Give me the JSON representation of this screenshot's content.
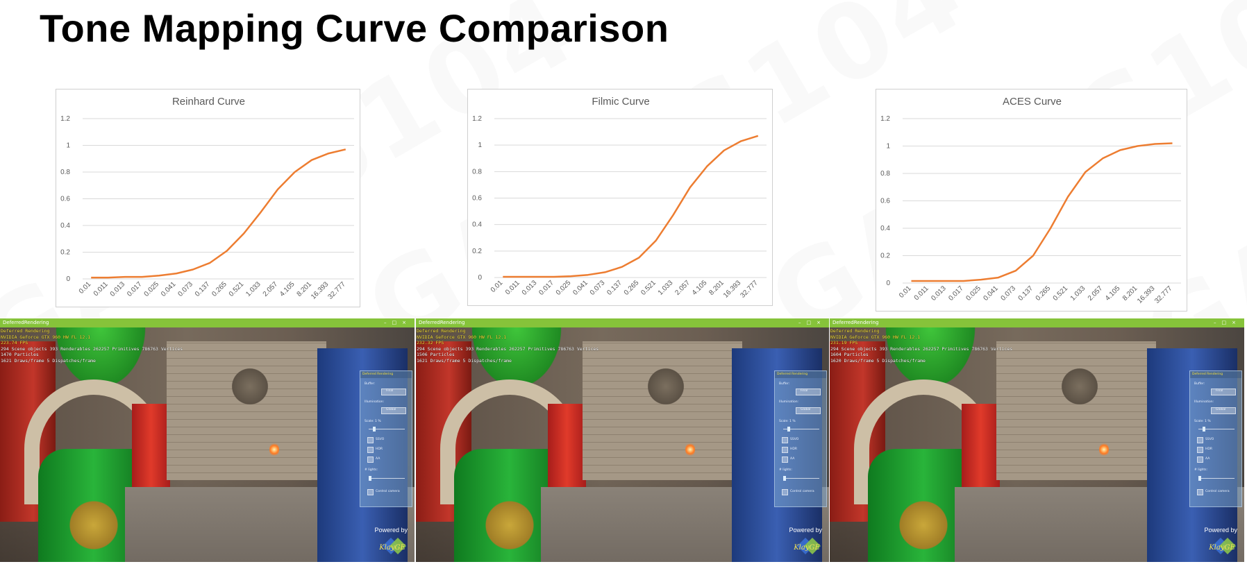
{
  "title": "Tone Mapping Curve Comparison",
  "chart_data": [
    {
      "type": "line",
      "title": "Reinhard Curve",
      "categories": [
        "0.01",
        "0.011",
        "0.013",
        "0.017",
        "0.025",
        "0.041",
        "0.073",
        "0.137",
        "0.265",
        "0.521",
        "1.033",
        "2.057",
        "4.105",
        "8.201",
        "16.393",
        "32.777"
      ],
      "series": [
        {
          "values": [
            0.01,
            0.01,
            0.015,
            0.015,
            0.025,
            0.04,
            0.07,
            0.12,
            0.21,
            0.34,
            0.5,
            0.67,
            0.8,
            0.89,
            0.94,
            0.97
          ],
          "color": "#ed7d31"
        }
      ],
      "ylim": [
        0,
        1.2
      ],
      "yticks": [
        "0",
        "0.2",
        "0.4",
        "0.6",
        "0.8",
        "1",
        "1.2"
      ],
      "grid": true
    },
    {
      "type": "line",
      "title": "Filmic Curve",
      "categories": [
        "0.01",
        "0.011",
        "0.013",
        "0.017",
        "0.025",
        "0.041",
        "0.073",
        "0.137",
        "0.265",
        "0.521",
        "1.033",
        "2.057",
        "4.105",
        "8.201",
        "16.393",
        "32.777"
      ],
      "series": [
        {
          "values": [
            0.005,
            0.005,
            0.005,
            0.005,
            0.01,
            0.02,
            0.04,
            0.08,
            0.15,
            0.28,
            0.47,
            0.68,
            0.84,
            0.96,
            1.03,
            1.07
          ],
          "color": "#ed7d31"
        }
      ],
      "ylim": [
        0,
        1.2
      ],
      "yticks": [
        "0",
        "0.2",
        "0.4",
        "0.6",
        "0.8",
        "1",
        "1.2"
      ],
      "grid": true
    },
    {
      "type": "line",
      "title": "ACES Curve",
      "categories": [
        "0.01",
        "0.011",
        "0.013",
        "0.017",
        "0.025",
        "0.041",
        "0.073",
        "0.137",
        "0.265",
        "0.521",
        "1.033",
        "2.057",
        "4.105",
        "8.201",
        "16.393",
        "32.777"
      ],
      "series": [
        {
          "values": [
            0.015,
            0.015,
            0.015,
            0.015,
            0.025,
            0.04,
            0.09,
            0.2,
            0.4,
            0.63,
            0.81,
            0.91,
            0.97,
            1.0,
            1.015,
            1.02
          ],
          "color": "#ed7d31"
        }
      ],
      "ylim": [
        0,
        1.2
      ],
      "yticks": [
        "0",
        "0.2",
        "0.4",
        "0.6",
        "0.8",
        "1",
        "1.2"
      ],
      "grid": true
    }
  ],
  "screenshots": [
    {
      "window_title": "DeferredRendering",
      "line1": "Deferred Rendering",
      "line2": "NVIDIA GeForce GTX 960 HW FL 12.1",
      "fps": "223.74 FPS",
      "stats": "294 Scene objects 393 Renderables 262257 Primitives 786763 Vertices",
      "particles": "1470 Particles",
      "draws": "1621 Draws/frame 5 Dispatches/frame"
    },
    {
      "window_title": "DeferredRendering",
      "line1": "Deferred Rendering",
      "line2": "NVIDIA GeForce GTX 960 HW FL 12.1",
      "fps": "232.32 FPS",
      "stats": "294 Scene objects 393 Renderables 262257 Primitives 786763 Vertices",
      "particles": "1506 Particles",
      "draws": "1621 Draws/frame 5 Dispatches/frame"
    },
    {
      "window_title": "DeferredRendering",
      "line1": "Deferred Rendering",
      "line2": "NVIDIA GeForce GTX 960 HW FL 12.1",
      "fps": "231.19 FPS",
      "stats": "294 Scene objects 393 Renderables 262257 Primitives 786763 Vertices",
      "particles": "1604 Particles",
      "draws": "1620 Draws/frame 5 Dispatches/frame"
    }
  ],
  "panel": {
    "header": "Deferred Rendering",
    "buffer_label": "Buffer:",
    "buffer_value": "Final",
    "illumination_label": "Illumination:",
    "illumination_value": "Global",
    "scale_label": "Scale: 1 %",
    "ssvo": "SSVO",
    "hdr": "HDR",
    "aa": "AA",
    "lights_label": "# lights:",
    "control_camera": "Control camera"
  },
  "powered_by": "Powered by",
  "logo_text": "KlayGE",
  "watermark": "GAMES104",
  "colors": {
    "accent": "#ed7d31",
    "titlebar": "#86c33a",
    "text_yellow": "#f7e13b"
  }
}
